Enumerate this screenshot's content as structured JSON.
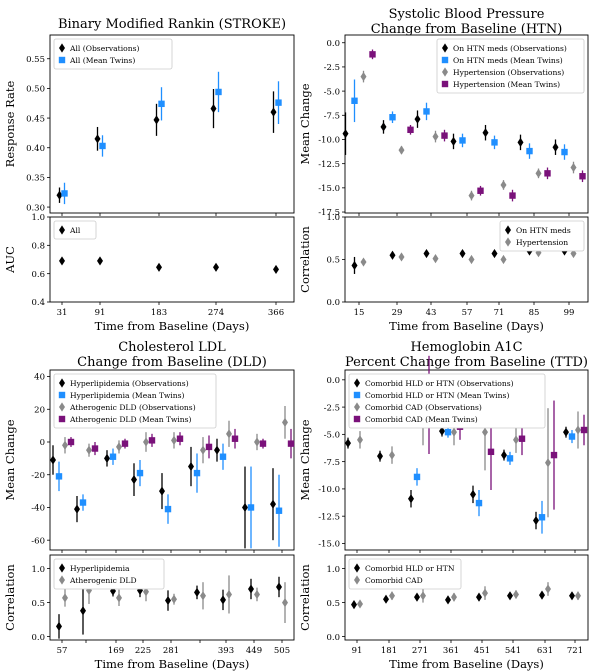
{
  "colors": {
    "black": "#000000",
    "blue": "#1f8fff",
    "gray": "#8a8a8a",
    "purple": "#7a117a"
  },
  "chart_data": [
    {
      "type": "scatter",
      "title": [
        "Binary Modified Rankin (STROKE)"
      ],
      "xlabel": "Time from Baseline (Days)",
      "ylabel": "Response Rate",
      "ylim": [
        0.29,
        0.59
      ],
      "yticks": [
        0.3,
        0.35,
        0.4,
        0.45,
        0.5,
        0.55
      ],
      "ytick_labels": [
        "0.30",
        "0.35",
        "0.40",
        "0.45",
        "0.50",
        "0.55"
      ],
      "categories": [
        "31",
        "91",
        "183",
        "274",
        "366"
      ],
      "legend_position": "top-left",
      "series": [
        {
          "name": "All (Observations)",
          "color": "black",
          "marker": "diamond",
          "values": [
            0.32,
            0.415,
            0.447,
            0.466,
            0.46
          ],
          "err": [
            0.013,
            0.02,
            0.027,
            0.033,
            0.035
          ]
        },
        {
          "name": "All (Mean Twins)",
          "color": "blue",
          "marker": "square",
          "values": [
            0.323,
            0.403,
            0.474,
            0.494,
            0.476
          ],
          "err": [
            0.018,
            0.018,
            0.028,
            0.034,
            0.036
          ]
        }
      ],
      "sub": {
        "ylabel": "AUC",
        "ylim": [
          0.4,
          1.0
        ],
        "yticks": [
          0.4,
          0.6,
          0.8,
          1.0
        ],
        "ytick_labels": [
          "0.4",
          "0.6",
          "0.8",
          "1.0"
        ],
        "legend_position": "top-left",
        "series": [
          {
            "name": "All",
            "color": "black",
            "marker": "diamond",
            "values": [
              0.69,
              0.69,
              0.645,
              0.645,
              0.63
            ],
            "err": [
              0.012,
              0.012,
              0.02,
              0.022,
              0.022
            ]
          }
        ]
      }
    },
    {
      "type": "scatter",
      "title": [
        "Systolic Blood Pressure",
        "Change from Baseline (HTN)"
      ],
      "xlabel": "Time from Baseline (Days)",
      "ylabel": "Mean Change",
      "ylim": [
        -17.6,
        0.8
      ],
      "yticks": [
        0.0,
        -2.5,
        -5.0,
        -7.5,
        -10.0,
        -12.5,
        -15.0,
        -17.5
      ],
      "ytick_labels": [
        "0.0",
        "-2.5",
        "-5.0",
        "-7.5",
        "-10.0",
        "-12.5",
        "-15.0",
        "-17.5"
      ],
      "categories": [
        "15",
        "29",
        "43",
        "57",
        "71",
        "85",
        "99"
      ],
      "legend_position": "top-right",
      "series": [
        {
          "name": "On HTN meds (Observations)",
          "color": "black",
          "marker": "diamond",
          "values": [
            -9.4,
            -8.7,
            -7.9,
            -10.2,
            -9.3,
            -10.3,
            -10.8
          ],
          "err": [
            2.2,
            0.7,
            0.9,
            0.8,
            0.8,
            0.8,
            0.8
          ]
        },
        {
          "name": "On HTN meds (Mean Twins)",
          "color": "blue",
          "marker": "square",
          "values": [
            -6.0,
            -7.7,
            -7.1,
            -10.1,
            -10.3,
            -11.2,
            -11.3
          ],
          "err": [
            2.2,
            0.6,
            0.9,
            0.7,
            0.7,
            0.8,
            0.8
          ]
        },
        {
          "name": "Hypertension (Observations)",
          "color": "gray",
          "marker": "diamond",
          "values": [
            -3.5,
            -11.1,
            -9.7,
            -15.8,
            -14.7,
            -13.5,
            -12.9
          ],
          "err": [
            0.6,
            0.4,
            0.6,
            0.5,
            0.5,
            0.5,
            0.6
          ]
        },
        {
          "name": "Hypertension (Mean Twins)",
          "color": "purple",
          "marker": "square",
          "values": [
            -1.2,
            -9.0,
            -9.6,
            -15.3,
            -15.8,
            -13.5,
            -13.8
          ],
          "err": [
            0.5,
            0.5,
            0.6,
            0.5,
            0.6,
            0.6,
            0.6
          ]
        }
      ],
      "sub": {
        "ylabel": "Correlation",
        "ylim": [
          0.0,
          1.0
        ],
        "yticks": [
          0.0,
          0.5,
          1.0
        ],
        "ytick_labels": [
          "0.0",
          "0.5",
          "1.0"
        ],
        "legend_position": "top-right",
        "series": [
          {
            "name": "On HTN meds",
            "color": "black",
            "marker": "diamond",
            "values": [
              0.43,
              0.55,
              0.57,
              0.57,
              0.57,
              0.6,
              0.6
            ],
            "err": [
              0.1,
              0.03,
              0.03,
              0.03,
              0.03,
              0.03,
              0.03
            ]
          },
          {
            "name": "Hypertension",
            "color": "gray",
            "marker": "diamond",
            "values": [
              0.47,
              0.53,
              0.51,
              0.5,
              0.5,
              0.58,
              0.57
            ],
            "err": [
              0.03,
              0.03,
              0.03,
              0.03,
              0.03,
              0.03,
              0.03
            ]
          }
        ]
      }
    },
    {
      "type": "scatter",
      "title": [
        "Cholesterol LDL",
        "Change from Baseline (DLD)"
      ],
      "xlabel": "Time from Baseline (Days)",
      "ylabel": "Mean Change",
      "ylim": [
        -66,
        44
      ],
      "yticks": [
        40,
        20,
        0,
        -20,
        -40,
        -60
      ],
      "ytick_labels": [
        "40",
        "20",
        "0",
        "-20",
        "-40",
        "-60"
      ],
      "categories": [
        "57",
        "113",
        "169",
        "225",
        "281",
        "337",
        "393",
        "449",
        "505"
      ],
      "tick_labels": [
        "57",
        "",
        "169",
        "225",
        "281",
        "",
        "393",
        "449",
        "505"
      ],
      "legend_position": "top-left",
      "series": [
        {
          "name": "Hyperlipidemia (Observations)",
          "color": "black",
          "marker": "diamond",
          "values": [
            -11,
            -41,
            -10,
            -23,
            -30,
            -15,
            -5,
            -40,
            -38
          ],
          "err": [
            9,
            8,
            5,
            10,
            11,
            12,
            7,
            25,
            22
          ]
        },
        {
          "name": "Hyperlipidemia (Mean Twins)",
          "color": "blue",
          "marker": "square",
          "values": [
            -21,
            -37,
            -9,
            -19,
            -41,
            -19,
            -9,
            -40,
            -42
          ],
          "err": [
            9,
            5,
            5,
            8,
            9,
            12,
            8,
            25,
            22
          ]
        },
        {
          "name": "Atherogenic DLD (Observations)",
          "color": "gray",
          "marker": "diamond",
          "values": [
            -2,
            -5,
            -3,
            0,
            1,
            -5,
            5,
            0,
            12
          ],
          "err": [
            5,
            4,
            4,
            6,
            5,
            8,
            8,
            5,
            10
          ]
        },
        {
          "name": "Atherogenic DLD (Mean Twins)",
          "color": "purple",
          "marker": "square",
          "values": [
            0,
            -4,
            -1,
            1,
            2,
            -3,
            2,
            -1,
            -1
          ],
          "err": [
            3,
            4,
            3,
            4,
            4,
            7,
            6,
            3,
            9
          ]
        }
      ],
      "sub": {
        "ylabel": "Correlation",
        "ylim": [
          -0.05,
          1.2
        ],
        "yticks": [
          0.0,
          0.5,
          1.0
        ],
        "ytick_labels": [
          "0.0",
          "0.5",
          "1.0"
        ],
        "legend_position": "top-left",
        "series": [
          {
            "name": "Hyperlipidemia",
            "color": "black",
            "marker": "diamond",
            "values": [
              0.15,
              0.38,
              0.67,
              0.68,
              0.53,
              0.65,
              0.54,
              0.7,
              0.73
            ],
            "err": [
              0.18,
              0.35,
              0.08,
              0.1,
              0.15,
              0.1,
              0.15,
              0.15,
              0.15
            ]
          },
          {
            "name": "Atherogenic DLD",
            "color": "gray",
            "marker": "diamond",
            "values": [
              0.57,
              0.68,
              0.57,
              0.66,
              0.55,
              0.6,
              0.62,
              0.62,
              0.5
            ],
            "err": [
              0.13,
              0.2,
              0.12,
              0.14,
              0.08,
              0.2,
              0.28,
              0.1,
              0.3
            ]
          }
        ]
      }
    },
    {
      "type": "scatter",
      "title": [
        "Hemoglobin A1C",
        "Percent Change from Baseline (TTD)"
      ],
      "xlabel": "Time from Baseline (Days)",
      "ylabel": "Mean Change",
      "ylim": [
        -15.6,
        0.9
      ],
      "yticks": [
        0.0,
        -2.5,
        -5.0,
        -7.5,
        -10.0,
        -12.5,
        -15.0
      ],
      "ytick_labels": [
        "0.0",
        "-2.5",
        "-5.0",
        "-7.5",
        "-10.0",
        "-12.5",
        "-15.0"
      ],
      "categories": [
        "91",
        "181",
        "271",
        "361",
        "451",
        "541",
        "631",
        "721"
      ],
      "legend_position": "top-left",
      "series": [
        {
          "name": "Comorbid HLD or HTN (Observations)",
          "color": "black",
          "marker": "diamond",
          "values": [
            -5.8,
            -7.0,
            -10.9,
            -4.7,
            -10.5,
            -6.9,
            -12.9,
            -4.8
          ],
          "err": [
            0.5,
            0.5,
            0.8,
            0.5,
            0.8,
            0.5,
            0.8,
            0.5
          ]
        },
        {
          "name": "Comorbid HLD or HTN (Mean Twins)",
          "color": "blue",
          "marker": "square",
          "values": [
            -1.9,
            -3.6,
            -8.9,
            -4.8,
            -11.3,
            -7.2,
            -12.6,
            -5.2
          ],
          "err": [
            0.5,
            0.5,
            0.8,
            0.5,
            1.2,
            0.6,
            1.5,
            0.6
          ]
        },
        {
          "name": "Comorbid CAD (Observations)",
          "color": "gray",
          "marker": "diamond",
          "values": [
            -5.5,
            -6.9,
            -3.0,
            -4.8,
            -4.8,
            -5.5,
            -7.6,
            -4.6
          ],
          "err": [
            0.8,
            0.8,
            3.0,
            1.2,
            3.5,
            1.2,
            5.0,
            1.7
          ]
        },
        {
          "name": "Comorbid CAD (Mean Twins)",
          "color": "purple",
          "marker": "square",
          "values": [
            -1.4,
            -2.6,
            -2.3,
            -4.3,
            -6.6,
            -5.4,
            -6.9,
            -4.6
          ],
          "err": [
            1.0,
            1.2,
            4.5,
            1.2,
            3.5,
            1.5,
            5.0,
            1.4
          ]
        }
      ],
      "sub": {
        "ylabel": "Correlation",
        "ylim": [
          -0.05,
          1.2
        ],
        "yticks": [
          0.0,
          0.5,
          1.0
        ],
        "ytick_labels": [
          "0.0",
          "0.5",
          "1.0"
        ],
        "legend_position": "top-left",
        "series": [
          {
            "name": "Comorbid HLD or HTN",
            "color": "black",
            "marker": "diamond",
            "values": [
              0.47,
              0.55,
              0.58,
              0.54,
              0.58,
              0.6,
              0.61,
              0.6
            ],
            "err": [
              0.03,
              0.03,
              0.04,
              0.03,
              0.05,
              0.03,
              0.05,
              0.03
            ]
          },
          {
            "name": "Comorbid CAD",
            "color": "gray",
            "marker": "diamond",
            "values": [
              0.48,
              0.6,
              0.6,
              0.58,
              0.64,
              0.62,
              0.7,
              0.6
            ],
            "err": [
              0.04,
              0.06,
              0.1,
              0.06,
              0.1,
              0.06,
              0.1,
              0.06
            ]
          }
        ]
      }
    }
  ]
}
